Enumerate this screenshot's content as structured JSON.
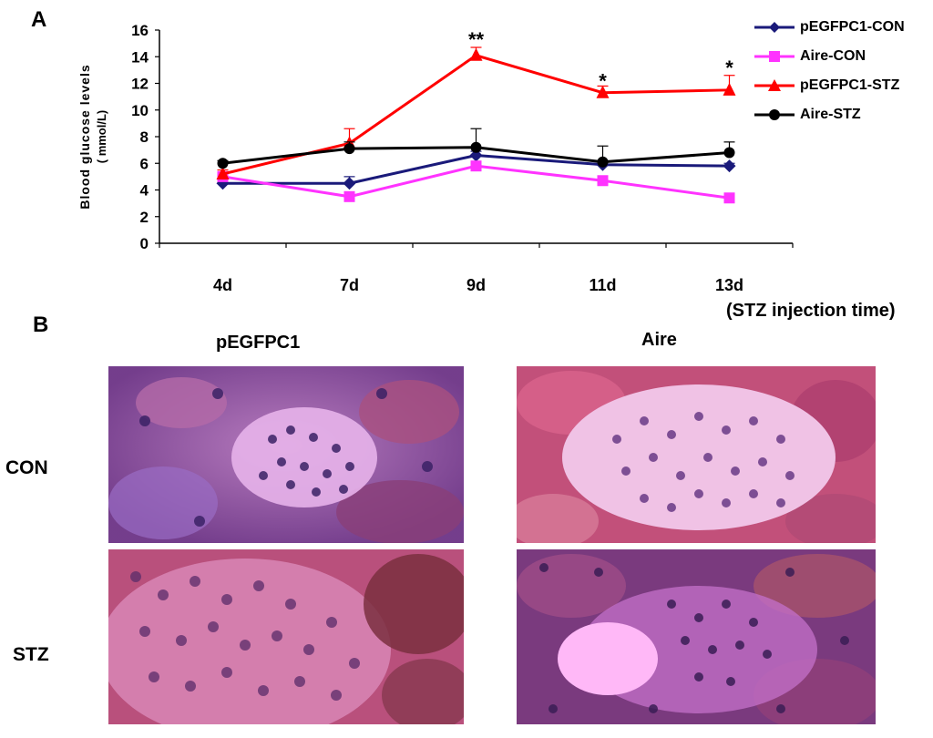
{
  "panel_a_label": "A",
  "panel_b_label": "B",
  "chart_data": {
    "type": "line",
    "categories": [
      "4d",
      "7d",
      "9d",
      "11d",
      "13d"
    ],
    "xlabel": "(STZ injection time)",
    "ylabel_line1": "Blood glucose levels",
    "ylabel_line2": "( mmol/L)",
    "ylim": [
      0,
      16
    ],
    "yticks": [
      0,
      2,
      4,
      6,
      8,
      10,
      12,
      14,
      16
    ],
    "grid": false,
    "legend_position": "top-right",
    "series": [
      {
        "name": "pEGFPC1-CON",
        "color": "#1a1a7a",
        "marker": "diamond",
        "values": [
          4.5,
          4.5,
          6.6,
          5.9,
          5.8
        ],
        "errors": [
          0.3,
          0.5,
          0.3,
          0.3,
          0.2
        ]
      },
      {
        "name": "Aire-CON",
        "color": "#ff33ff",
        "marker": "square",
        "values": [
          5.0,
          3.5,
          5.8,
          4.7,
          3.4
        ],
        "errors": [
          0.3,
          0.3,
          0.3,
          0.3,
          0.2
        ]
      },
      {
        "name": "pEGFPC1-STZ",
        "color": "#ff0000",
        "marker": "triangle",
        "values": [
          5.2,
          7.5,
          14.1,
          11.3,
          11.5
        ],
        "errors": [
          0.3,
          1.1,
          0.6,
          0.5,
          1.1
        ]
      },
      {
        "name": "Aire-STZ",
        "color": "#000000",
        "marker": "circle",
        "values": [
          6.0,
          7.1,
          7.2,
          6.1,
          6.8
        ],
        "errors": [
          0.2,
          0.5,
          1.4,
          1.2,
          0.8
        ]
      }
    ],
    "annotations": [
      {
        "category": "9d",
        "text": "**",
        "y": 15.3
      },
      {
        "category": "11d",
        "text": "*",
        "y": 12.2
      },
      {
        "category": "13d",
        "text": "*",
        "y": 13.2
      }
    ]
  },
  "histology": {
    "columns": [
      "pEGFPC1",
      "Aire"
    ],
    "rows": [
      "CON",
      "STZ"
    ]
  }
}
